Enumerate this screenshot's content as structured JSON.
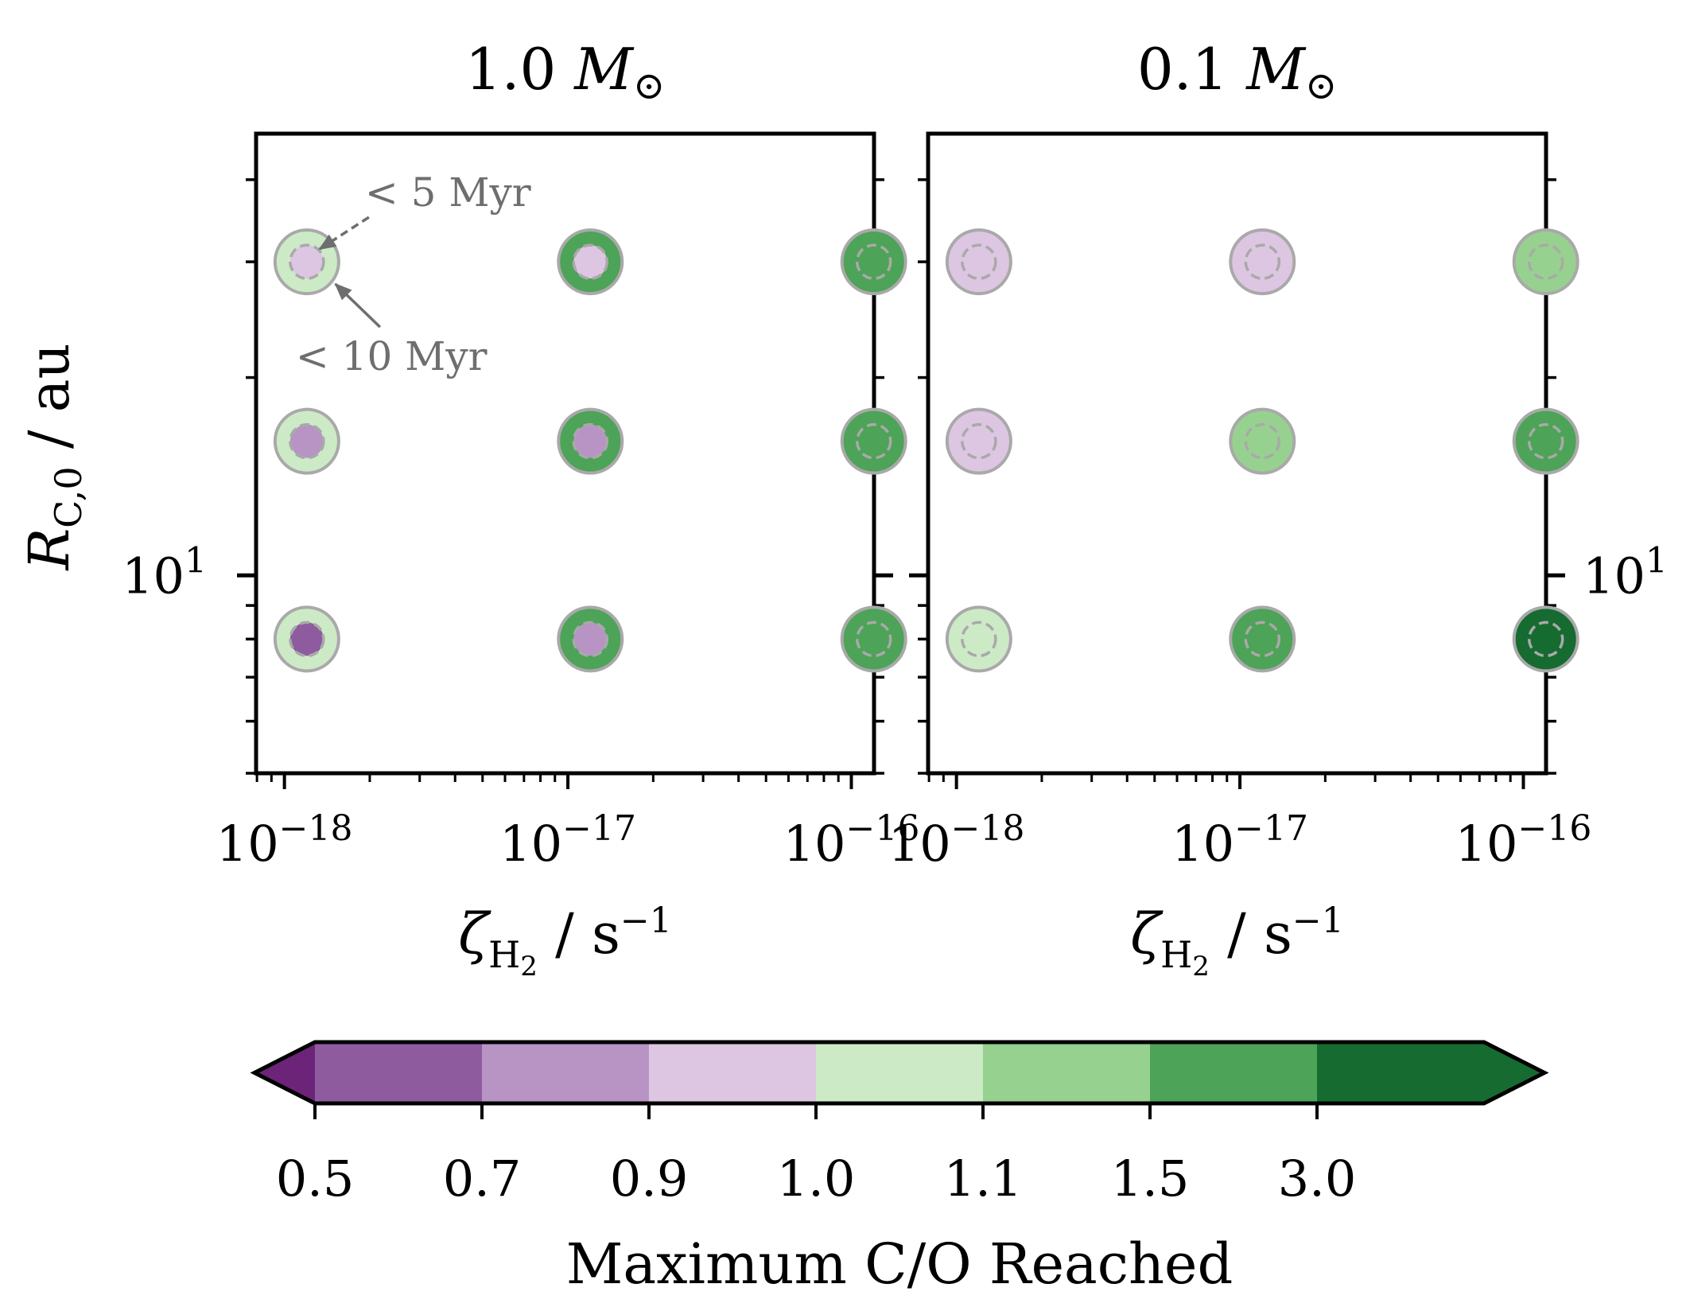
{
  "chart_data": {
    "type": "scatter",
    "y_axis": {
      "label_main": "R",
      "label_sub": "C,0",
      "label_unit": " / au",
      "scale": "log",
      "tick_labels": [
        {
          "base": "10",
          "exp": "1"
        }
      ]
    },
    "x_axis": {
      "label_main": "ζ",
      "label_sub": "H",
      "label_sub2": "2",
      "label_unit": " / s",
      "label_exp": "−1",
      "scale": "log",
      "tick_labels": [
        {
          "base": "10",
          "exp": "−18"
        },
        {
          "base": "10",
          "exp": "−17"
        },
        {
          "base": "10",
          "exp": "−16"
        }
      ]
    },
    "panels": [
      {
        "title_value": "1.0",
        "title_symbol": "M",
        "title_sub": "⊙",
        "annotations": [
          {
            "text": "< 5 Myr"
          },
          {
            "text": "< 10 Myr"
          }
        ],
        "points": [
          {
            "zeta": 1.2e-18,
            "R": 30,
            "max_co_10myr": 1.05,
            "max_co_5myr": 0.95
          },
          {
            "zeta": 1.2e-17,
            "R": 30,
            "max_co_10myr": 2.0,
            "max_co_5myr": 0.95
          },
          {
            "zeta": 1.2e-16,
            "R": 30,
            "max_co_10myr": 2.0,
            "max_co_5myr": 2.0
          },
          {
            "zeta": 1.2e-18,
            "R": 16,
            "max_co_10myr": 1.05,
            "max_co_5myr": 0.8
          },
          {
            "zeta": 1.2e-17,
            "R": 16,
            "max_co_10myr": 2.0,
            "max_co_5myr": 0.8
          },
          {
            "zeta": 1.2e-16,
            "R": 16,
            "max_co_10myr": 2.0,
            "max_co_5myr": 2.0
          },
          {
            "zeta": 1.2e-18,
            "R": 8,
            "max_co_10myr": 1.05,
            "max_co_5myr": 0.6
          },
          {
            "zeta": 1.2e-17,
            "R": 8,
            "max_co_10myr": 2.0,
            "max_co_5myr": 0.8
          },
          {
            "zeta": 1.2e-16,
            "R": 8,
            "max_co_10myr": 2.0,
            "max_co_5myr": 2.0
          }
        ]
      },
      {
        "title_value": "0.1",
        "title_symbol": "M",
        "title_sub": "⊙",
        "annotations": [],
        "points": [
          {
            "zeta": 1.2e-18,
            "R": 30,
            "max_co_10myr": 0.95,
            "max_co_5myr": 0.95
          },
          {
            "zeta": 1.2e-17,
            "R": 30,
            "max_co_10myr": 0.95,
            "max_co_5myr": 0.95
          },
          {
            "zeta": 1.2e-16,
            "R": 30,
            "max_co_10myr": 1.3,
            "max_co_5myr": 1.3
          },
          {
            "zeta": 1.2e-18,
            "R": 16,
            "max_co_10myr": 0.95,
            "max_co_5myr": 0.95
          },
          {
            "zeta": 1.2e-17,
            "R": 16,
            "max_co_10myr": 1.3,
            "max_co_5myr": 1.3
          },
          {
            "zeta": 1.2e-16,
            "R": 16,
            "max_co_10myr": 2.0,
            "max_co_5myr": 2.0
          },
          {
            "zeta": 1.2e-18,
            "R": 8,
            "max_co_10myr": 1.05,
            "max_co_5myr": 1.05
          },
          {
            "zeta": 1.2e-17,
            "R": 8,
            "max_co_10myr": 2.0,
            "max_co_5myr": 2.0
          },
          {
            "zeta": 1.2e-16,
            "R": 8,
            "max_co_10myr": 3.5,
            "max_co_5myr": 3.5
          }
        ]
      }
    ],
    "colorbar": {
      "label": "Maximum C/O Reached",
      "boundaries": [
        0.5,
        0.7,
        0.9,
        1.0,
        1.1,
        1.5,
        3.0
      ],
      "tick_labels": [
        "0.5",
        "0.7",
        "0.9",
        "1.0",
        "1.1",
        "1.5",
        "3.0"
      ],
      "colors": [
        "#8e5b9f",
        "#b794c4",
        "#ddc6e1",
        "#cdeac7",
        "#97d18f",
        "#4da357",
        "#166b31"
      ],
      "under_color": "#6c2478",
      "over_color": "#166b31",
      "extend": "both"
    }
  }
}
